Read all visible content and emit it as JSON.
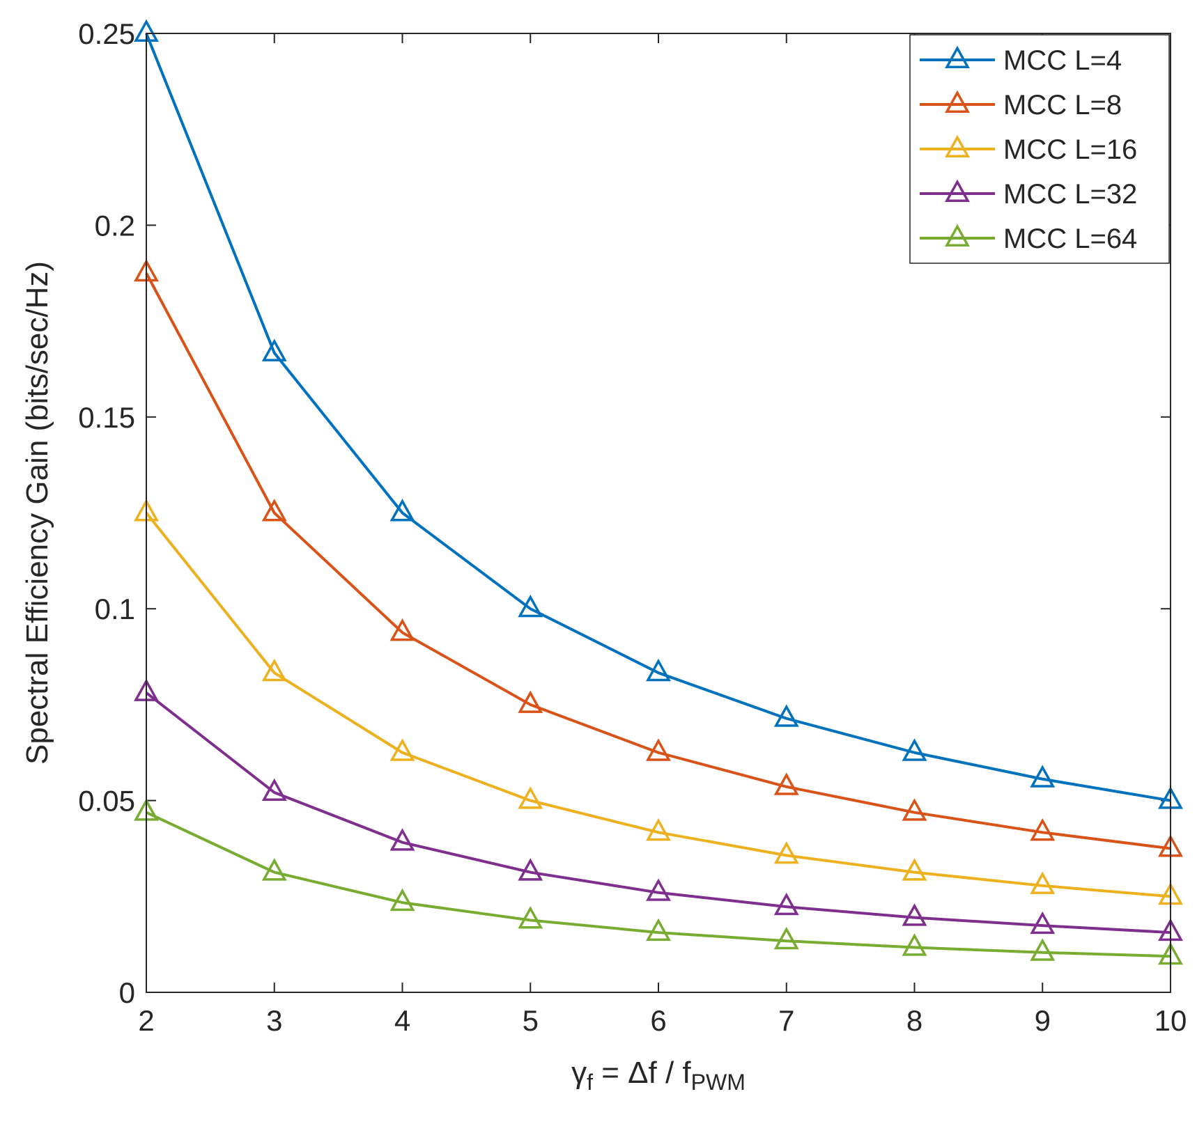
{
  "chart_data": {
    "type": "line",
    "title": "",
    "xlabel": {
      "symbol": "γ",
      "symbol_sub": "f",
      "middle": " = Δf / f",
      "end_sub": "PWM"
    },
    "ylabel": "Spectral Efficiency Gain (bits/sec/Hz)",
    "xlim": [
      2,
      10
    ],
    "ylim": [
      0,
      0.25
    ],
    "x": [
      2,
      3,
      4,
      5,
      6,
      7,
      8,
      9,
      10
    ],
    "xticks": [
      2,
      3,
      4,
      5,
      6,
      7,
      8,
      9,
      10
    ],
    "xtick_labels": [
      "2",
      "3",
      "4",
      "5",
      "6",
      "7",
      "8",
      "9",
      "10"
    ],
    "yticks": [
      0,
      0.05,
      0.1,
      0.15,
      0.2,
      0.25
    ],
    "ytick_labels": [
      "0",
      "0.05",
      "0.1",
      "0.15",
      "0.2",
      "0.25"
    ],
    "grid": false,
    "legend_position": "top-right",
    "marker": "triangle",
    "series": [
      {
        "name": "MCC L=4",
        "color": "#0072BD",
        "values": [
          0.25,
          0.1667,
          0.125,
          0.1,
          0.0833,
          0.0714,
          0.0625,
          0.0556,
          0.05
        ]
      },
      {
        "name": "MCC L=8",
        "color": "#D95319",
        "values": [
          0.1875,
          0.125,
          0.0938,
          0.075,
          0.0625,
          0.0536,
          0.0469,
          0.0417,
          0.0375
        ]
      },
      {
        "name": "MCC L=16",
        "color": "#EDB120",
        "values": [
          0.125,
          0.0833,
          0.0625,
          0.05,
          0.0417,
          0.0357,
          0.0313,
          0.0278,
          0.025
        ]
      },
      {
        "name": "MCC L=32",
        "color": "#7E2F8E",
        "values": [
          0.0781,
          0.0521,
          0.0391,
          0.0313,
          0.026,
          0.0223,
          0.0195,
          0.0174,
          0.0156
        ]
      },
      {
        "name": "MCC L=64",
        "color": "#77AC30",
        "values": [
          0.0469,
          0.0313,
          0.0234,
          0.0188,
          0.0156,
          0.0134,
          0.0117,
          0.0104,
          0.0094
        ]
      }
    ]
  }
}
